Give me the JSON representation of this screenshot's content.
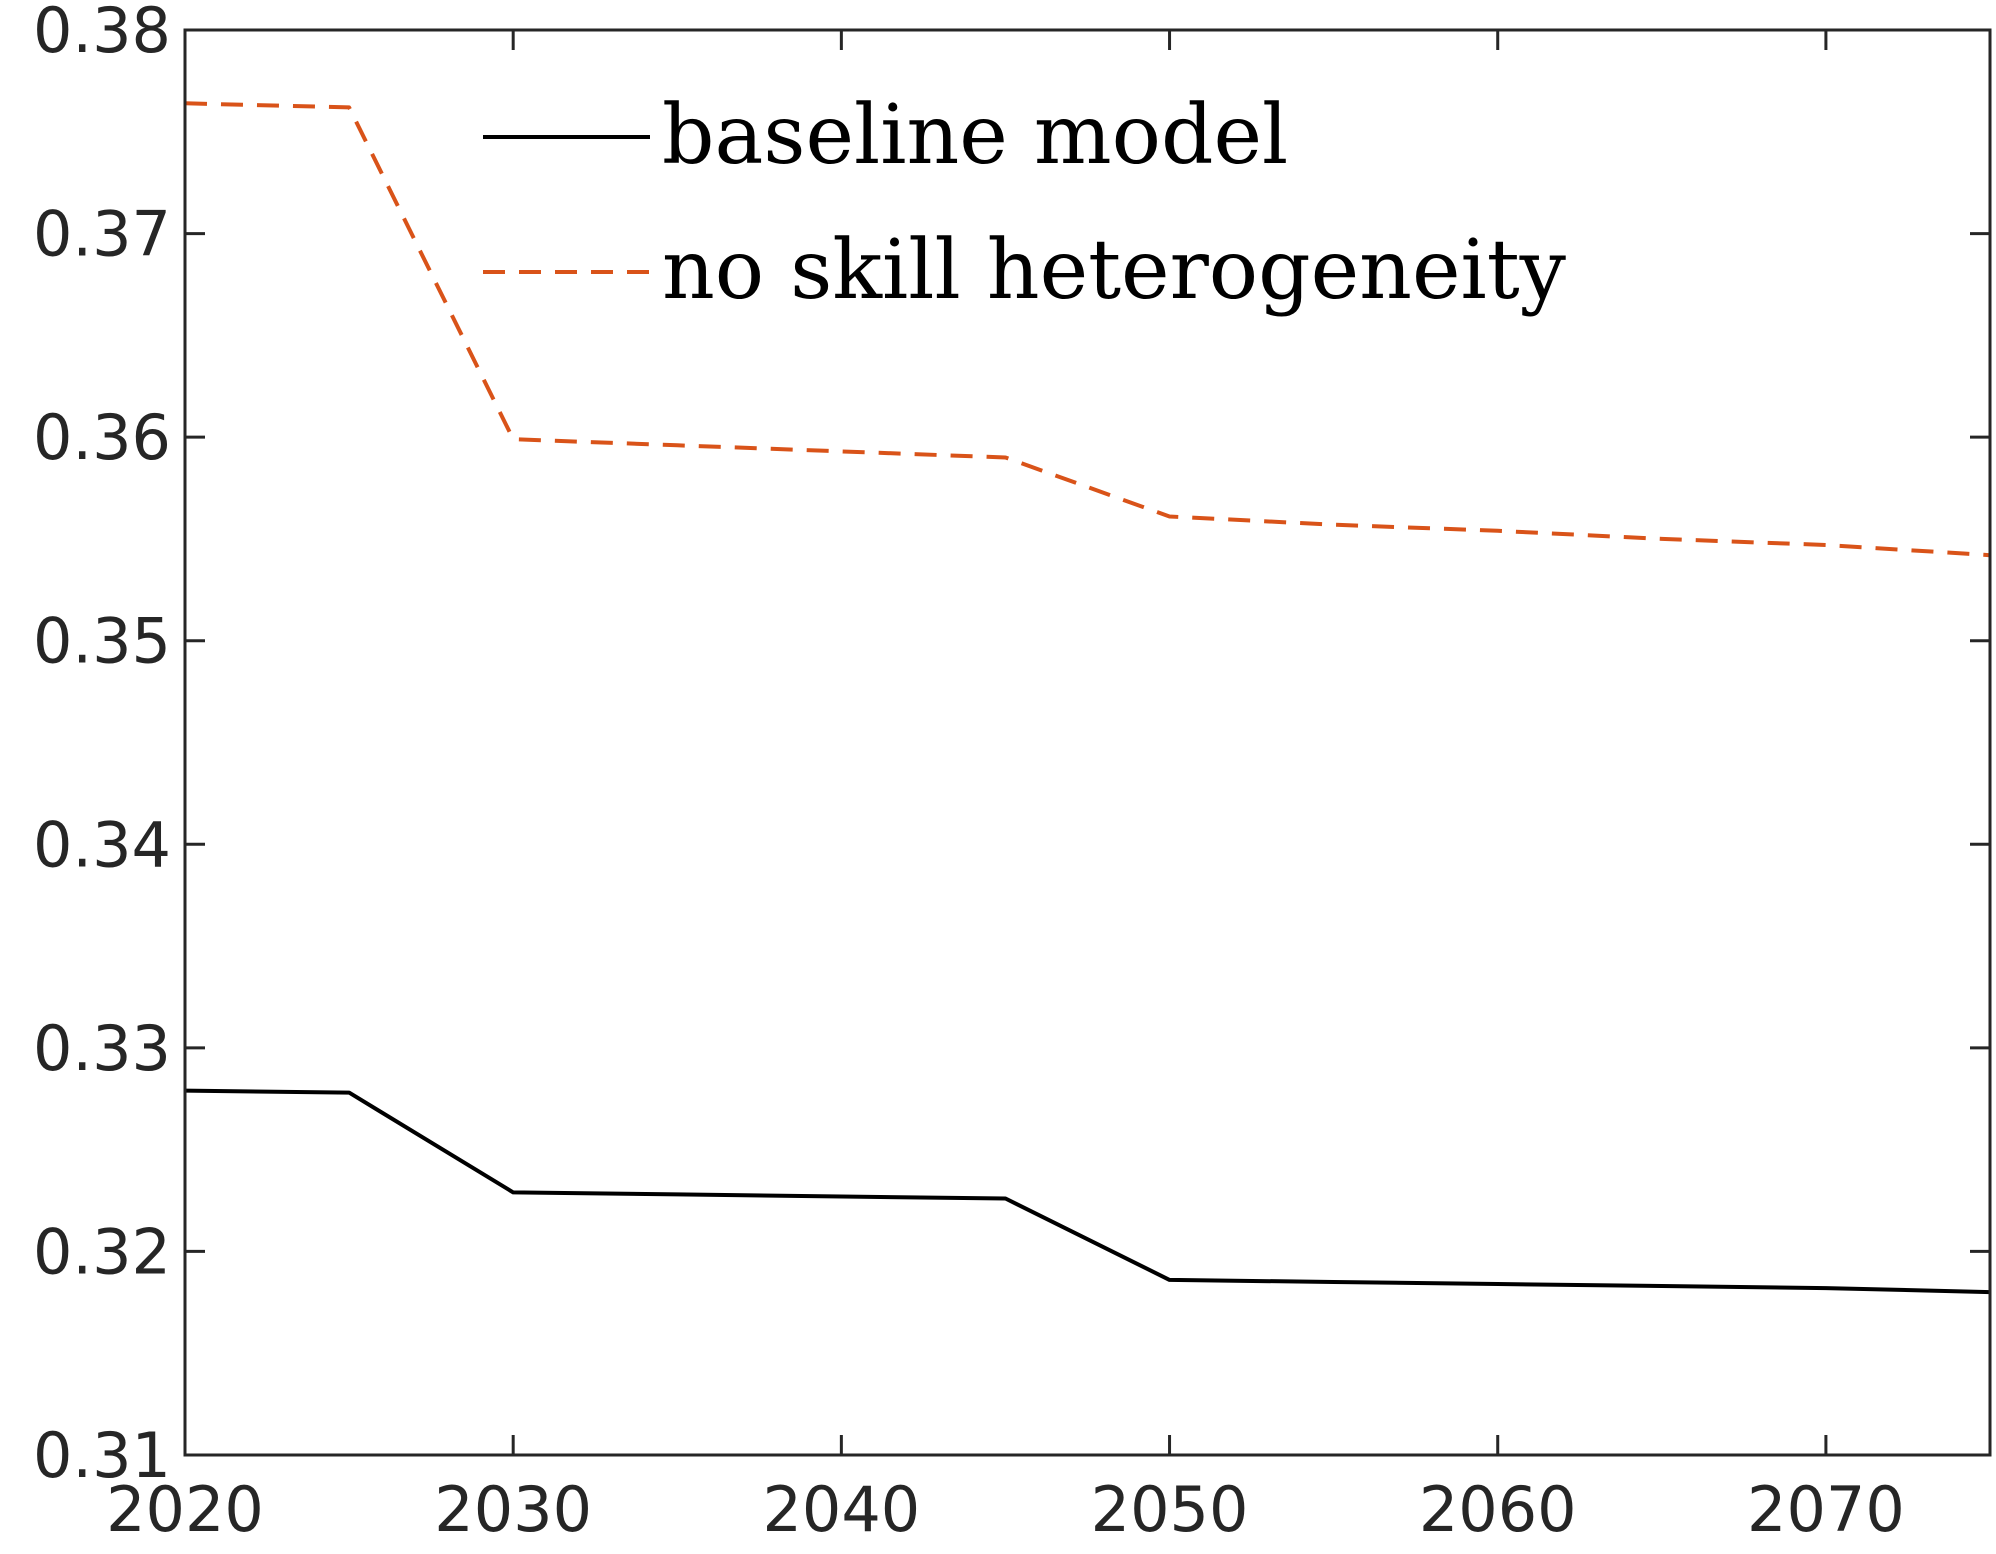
{
  "chart_data": {
    "type": "line",
    "title": "",
    "xlabel": "",
    "ylabel": "",
    "xlim": [
      2020,
      2075
    ],
    "ylim": [
      0.31,
      0.38
    ],
    "x_ticks": [
      2020,
      2030,
      2040,
      2050,
      2060,
      2070
    ],
    "x_tick_labels": [
      "2020",
      "2030",
      "2040",
      "2050",
      "2060",
      "2070"
    ],
    "y_ticks": [
      0.31,
      0.32,
      0.33,
      0.34,
      0.35,
      0.36,
      0.37,
      0.38
    ],
    "y_tick_labels": [
      "0.31",
      "0.32",
      "0.33",
      "0.34",
      "0.35",
      "0.36",
      "0.37",
      "0.38"
    ],
    "grid": false,
    "legend_position": "top-right",
    "series": [
      {
        "name": "baseline model",
        "color": "#000000",
        "style": "solid",
        "x": [
          2020,
          2025,
          2030,
          2035,
          2040,
          2045,
          2050,
          2055,
          2060,
          2065,
          2070,
          2075
        ],
        "y": [
          0.3279,
          0.3278,
          0.3229,
          0.3228,
          0.3227,
          0.3226,
          0.3186,
          0.3185,
          0.3184,
          0.3183,
          0.3182,
          0.318
        ]
      },
      {
        "name": "no skill heterogeneity",
        "color": "#D95319",
        "style": "dashed",
        "x": [
          2020,
          2025,
          2030,
          2035,
          2040,
          2045,
          2050,
          2055,
          2060,
          2065,
          2070,
          2075
        ],
        "y": [
          0.3764,
          0.3762,
          0.3599,
          0.3596,
          0.3593,
          0.359,
          0.3561,
          0.3557,
          0.3554,
          0.355,
          0.3547,
          0.3542
        ]
      }
    ]
  }
}
